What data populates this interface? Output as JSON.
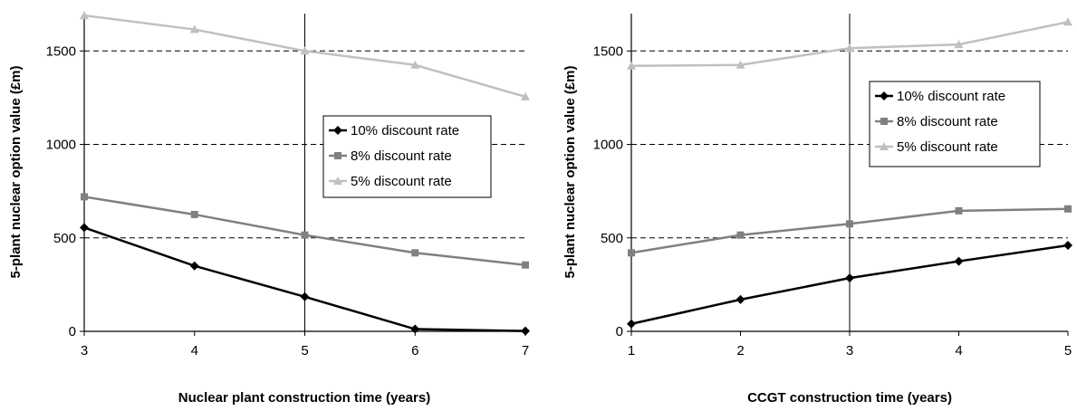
{
  "chart_data": [
    {
      "type": "line",
      "xlabel": "Nuclear plant construction time (years)",
      "ylabel": "5-plant nuclear option value (£m)",
      "x": [
        3,
        4,
        5,
        6,
        7
      ],
      "x_ticks": [
        "3",
        "4",
        "5",
        "6",
        "7"
      ],
      "y_ticks": [
        "0",
        "500",
        "1000",
        "1500"
      ],
      "xlim": [
        3,
        7
      ],
      "ylim": [
        0,
        1700
      ],
      "grid": "dashed horizontal at 500, 1000, 1500; vertical line at x=5",
      "legend_position": "center-right",
      "series": [
        {
          "name": "10% discount rate",
          "values": [
            555,
            350,
            185,
            12,
            2
          ],
          "color": "#000000",
          "marker": "diamond"
        },
        {
          "name": "8% discount rate",
          "values": [
            720,
            625,
            515,
            420,
            355
          ],
          "color": "#808080",
          "marker": "square"
        },
        {
          "name": "5% discount rate",
          "values": [
            1690,
            1615,
            1500,
            1425,
            1255
          ],
          "color": "#c0c0c0",
          "marker": "triangle"
        }
      ]
    },
    {
      "type": "line",
      "xlabel": "CCGT construction time (years)",
      "ylabel": "5-plant nuclear option value (£m)",
      "x": [
        1,
        2,
        3,
        4,
        5
      ],
      "x_ticks": [
        "1",
        "2",
        "3",
        "4",
        "5"
      ],
      "y_ticks": [
        "0",
        "500",
        "1000",
        "1500"
      ],
      "xlim": [
        1,
        5
      ],
      "ylim": [
        0,
        1700
      ],
      "grid": "dashed horizontal at 500, 1000, 1500; vertical line at x=3",
      "legend_position": "center-right",
      "series": [
        {
          "name": "10% discount rate",
          "values": [
            40,
            170,
            285,
            375,
            460
          ],
          "color": "#000000",
          "marker": "diamond"
        },
        {
          "name": "8% discount rate",
          "values": [
            420,
            515,
            575,
            645,
            655
          ],
          "color": "#808080",
          "marker": "square"
        },
        {
          "name": "5% discount rate",
          "values": [
            1420,
            1425,
            1515,
            1535,
            1655
          ],
          "color": "#c0c0c0",
          "marker": "triangle"
        }
      ]
    }
  ]
}
